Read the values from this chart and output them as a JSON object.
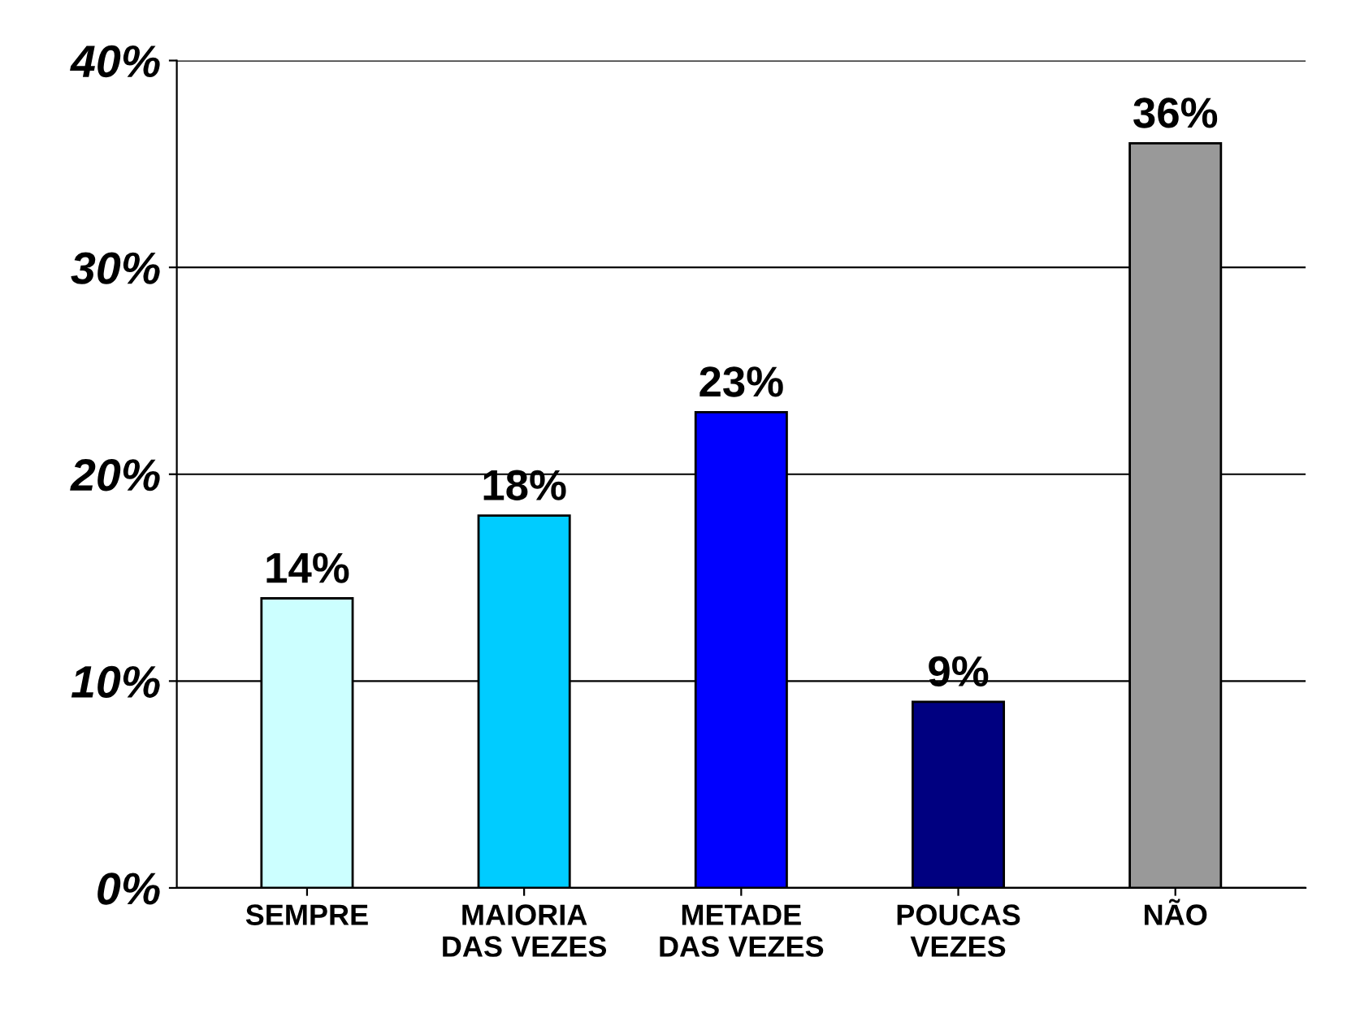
{
  "chart_data": {
    "type": "bar",
    "categories": [
      "SEMPRE",
      "MAIORIA\nDAS VEZES",
      "METADE\nDAS VEZES",
      "POUCAS\nVEZES",
      "NÃO"
    ],
    "values": [
      14,
      18,
      23,
      9,
      36
    ],
    "colors": [
      "#ccffff",
      "#00ccff",
      "#0000ff",
      "#000080",
      "#999999"
    ],
    "value_labels": [
      "14%",
      "18%",
      "23%",
      "9%",
      "36%"
    ],
    "ylim": [
      0,
      40
    ],
    "yticks": [
      {
        "value": 0,
        "label": "0%"
      },
      {
        "value": 10,
        "label": "10%"
      },
      {
        "value": 20,
        "label": "20%"
      },
      {
        "value": 30,
        "label": "30%"
      },
      {
        "value": 40,
        "label": "40%"
      }
    ],
    "grid": "y",
    "legend": false
  }
}
